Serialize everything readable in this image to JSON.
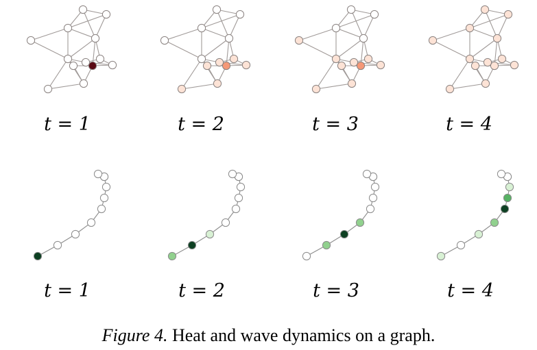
{
  "caption": {
    "label": "Figure 4.",
    "text": "Heat and wave dynamics on a graph."
  },
  "graphs": {
    "heat": {
      "colors": {
        "edge": "#a09a98",
        "stroke": "#8a8280",
        "palette": [
          "#ffffff",
          "#fde3d6",
          "#f59877",
          "#5a0a14"
        ]
      },
      "panels": [
        {
          "label": "t = 1",
          "levels": [
            0,
            0,
            0,
            0,
            0,
            0,
            0,
            0,
            0,
            0,
            3,
            0,
            0
          ]
        },
        {
          "label": "t = 2",
          "levels": [
            0,
            0,
            0,
            0,
            0,
            0,
            1,
            1,
            1,
            1,
            2,
            1,
            1
          ]
        },
        {
          "label": "t = 3",
          "levels": [
            0,
            0,
            0,
            0,
            1,
            1,
            1,
            1,
            1,
            1,
            2,
            1,
            1
          ]
        },
        {
          "label": "t = 4",
          "levels": [
            1,
            1,
            1,
            1,
            1,
            1,
            1,
            1,
            1,
            1,
            1,
            1,
            1
          ]
        }
      ]
    },
    "wave": {
      "colors": {
        "edge": "#8d8d8d",
        "stroke": "#8a8a8a",
        "palette": [
          "#ffffff",
          "#d8f1d4",
          "#91d18e",
          "#58b264",
          "#0d4022"
        ]
      },
      "panels": [
        {
          "label": "t = 1",
          "levels": [
            4,
            0,
            0,
            0,
            0,
            0,
            0,
            0,
            0,
            0
          ]
        },
        {
          "label": "t = 2",
          "levels": [
            2,
            4,
            1,
            0,
            0,
            0,
            0,
            0,
            0,
            0
          ]
        },
        {
          "label": "t = 3",
          "levels": [
            0,
            2,
            4,
            2,
            0,
            0,
            0,
            0,
            0,
            0
          ]
        },
        {
          "label": "t = 4",
          "levels": [
            1,
            0,
            1,
            2,
            4,
            3,
            1,
            1,
            0,
            0
          ]
        }
      ]
    }
  }
}
